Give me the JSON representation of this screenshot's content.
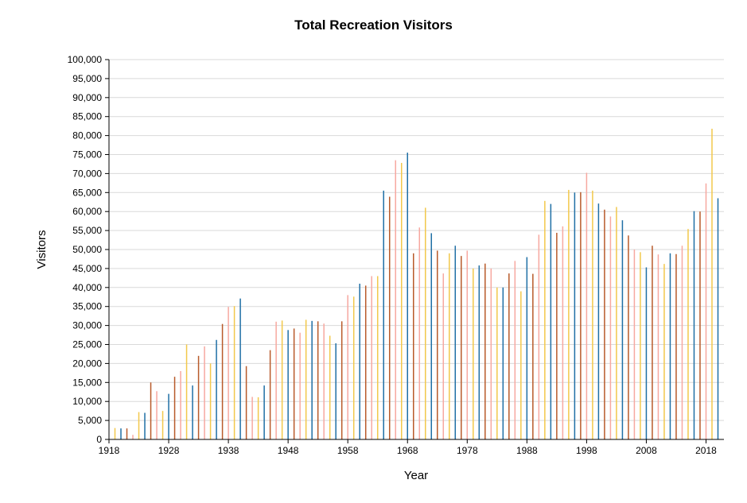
{
  "chart_data": {
    "type": "bar",
    "title": "Total Recreation Visitors",
    "xlabel": "Year",
    "ylabel": "Visitors",
    "ylim": [
      0,
      100000
    ],
    "xlim": [
      1918,
      2021
    ],
    "grid": true,
    "legend": "none",
    "x_ticks": [
      1918,
      1928,
      1938,
      1948,
      1958,
      1968,
      1978,
      1988,
      1998,
      2008,
      2018
    ],
    "x_tick_labels": [
      "1918",
      "1928",
      "1938",
      "1948",
      "1958",
      "1968",
      "1978",
      "1988",
      "1998",
      "2008",
      "2018"
    ],
    "y_ticks": [
      0,
      5000,
      10000,
      15000,
      20000,
      25000,
      30000,
      35000,
      40000,
      45000,
      50000,
      55000,
      60000,
      65000,
      70000,
      75000,
      80000,
      85000,
      90000,
      95000,
      100000
    ],
    "y_tick_labels": [
      "0",
      "5,000",
      "10,000",
      "15,000",
      "20,000",
      "25,000",
      "30,000",
      "35,000",
      "40,000",
      "45,000",
      "50,000",
      "55,000",
      "60,000",
      "65,000",
      "70,000",
      "75,000",
      "80,000",
      "85,000",
      "90,000",
      "95,000",
      "100,000"
    ],
    "bar_colors": [
      "#F2C84B",
      "#1F6FA5",
      "#B85A2A",
      "#F7A8A0"
    ],
    "years": [
      1919,
      1920,
      1921,
      1922,
      1923,
      1924,
      1925,
      1926,
      1927,
      1928,
      1929,
      1930,
      1931,
      1932,
      1933,
      1934,
      1935,
      1936,
      1937,
      1938,
      1939,
      1940,
      1941,
      1942,
      1943,
      1944,
      1945,
      1946,
      1947,
      1948,
      1949,
      1950,
      1951,
      1952,
      1953,
      1954,
      1955,
      1956,
      1957,
      1958,
      1959,
      1960,
      1961,
      1962,
      1963,
      1964,
      1965,
      1966,
      1967,
      1968,
      1969,
      1970,
      1971,
      1972,
      1973,
      1974,
      1975,
      1976,
      1977,
      1978,
      1979,
      1980,
      1981,
      1982,
      1983,
      1984,
      1985,
      1986,
      1987,
      1988,
      1989,
      1990,
      1991,
      1992,
      1993,
      1994,
      1995,
      1996,
      1997,
      1998,
      1999,
      2000,
      2001,
      2002,
      2003,
      2004,
      2005,
      2006,
      2007,
      2008,
      2009,
      2010,
      2011,
      2012,
      2013,
      2014,
      2015,
      2016,
      2017,
      2018,
      2019,
      2020
    ],
    "values": [
      3000,
      2900,
      2900,
      1200,
      7200,
      7000,
      15000,
      12700,
      7500,
      12000,
      16500,
      18000,
      25000,
      14200,
      22000,
      24500,
      20000,
      26200,
      30400,
      34900,
      35100,
      37100,
      19300,
      11200,
      11100,
      14200,
      23500,
      31000,
      31300,
      28800,
      29200,
      28100,
      31500,
      31200,
      31100,
      30500,
      27300,
      25300,
      31100,
      38000,
      37600,
      41000,
      40500,
      43000,
      43000,
      65500,
      63900,
      73500,
      72800,
      75500,
      49000,
      55800,
      61000,
      54300,
      49700,
      43700,
      49000,
      51000,
      48300,
      49700,
      45000,
      45800,
      46300,
      45000,
      40000,
      40000,
      43700,
      47000,
      39000,
      48000,
      43600,
      53900,
      62800,
      62000,
      54400,
      56100,
      65700,
      65000,
      65100,
      70200,
      65500,
      62100,
      60500,
      58700,
      61200,
      57700,
      53700,
      50000,
      49300,
      45300,
      51000,
      48700,
      46200,
      49000,
      48800,
      51000,
      55400,
      60100,
      60000,
      67400,
      81800,
      63500
    ]
  }
}
